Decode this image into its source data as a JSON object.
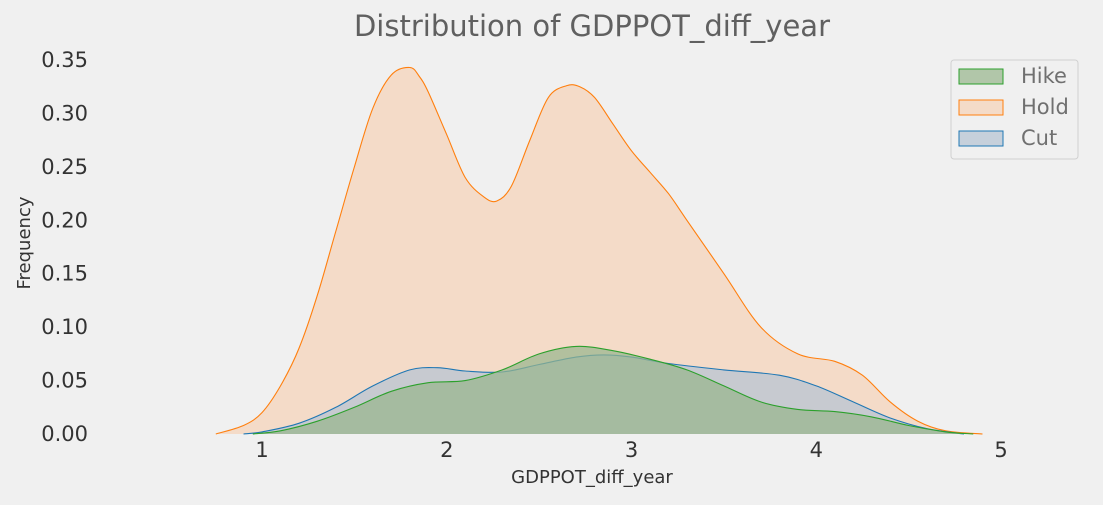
{
  "chart_data": {
    "type": "area",
    "title": "Distribution of GDPPOT_diff_year",
    "xlabel": "GDPPOT_diff_year",
    "ylabel": "Frequency",
    "xlim": [
      0.0,
      5.0
    ],
    "ylim": [
      0.0,
      0.35
    ],
    "xticks": [
      1,
      2,
      3,
      4,
      5
    ],
    "yticks": [
      0.0,
      0.05,
      0.1,
      0.15,
      0.2,
      0.25,
      0.3,
      0.35
    ],
    "ytick_labels": [
      "0.00",
      "0.05",
      "0.10",
      "0.15",
      "0.20",
      "0.25",
      "0.30",
      "0.35"
    ],
    "grid": false,
    "legend_position": "top-right",
    "series": [
      {
        "name": "Hold",
        "color": "#ff7f0e",
        "fill": "#f5d3b8",
        "x": [
          0.75,
          0.9,
          1.0,
          1.1,
          1.2,
          1.3,
          1.4,
          1.5,
          1.6,
          1.7,
          1.8,
          1.85,
          1.9,
          2.0,
          2.1,
          2.2,
          2.27,
          2.35,
          2.45,
          2.55,
          2.65,
          2.72,
          2.8,
          2.9,
          3.0,
          3.1,
          3.2,
          3.3,
          3.5,
          3.7,
          3.9,
          4.1,
          4.25,
          4.4,
          4.55,
          4.7,
          4.9
        ],
        "y": [
          0.0,
          0.008,
          0.02,
          0.045,
          0.08,
          0.13,
          0.19,
          0.25,
          0.305,
          0.336,
          0.343,
          0.335,
          0.32,
          0.28,
          0.24,
          0.222,
          0.218,
          0.232,
          0.275,
          0.315,
          0.326,
          0.325,
          0.315,
          0.29,
          0.265,
          0.245,
          0.225,
          0.2,
          0.15,
          0.1,
          0.075,
          0.068,
          0.055,
          0.03,
          0.012,
          0.003,
          0.0
        ]
      },
      {
        "name": "Cut",
        "color": "#1f77b4",
        "fill": "#b6c4d2",
        "x": [
          0.9,
          1.0,
          1.2,
          1.4,
          1.6,
          1.8,
          1.95,
          2.1,
          2.3,
          2.5,
          2.7,
          2.85,
          3.0,
          3.2,
          3.5,
          3.8,
          4.0,
          4.2,
          4.4,
          4.6,
          4.8
        ],
        "y": [
          0.0,
          0.002,
          0.01,
          0.025,
          0.045,
          0.06,
          0.062,
          0.059,
          0.058,
          0.065,
          0.072,
          0.074,
          0.072,
          0.066,
          0.06,
          0.055,
          0.045,
          0.03,
          0.015,
          0.005,
          0.0
        ]
      },
      {
        "name": "Hike",
        "color": "#2ca02c",
        "fill": "#99b58e",
        "x": [
          0.95,
          1.1,
          1.3,
          1.5,
          1.7,
          1.9,
          2.1,
          2.3,
          2.5,
          2.7,
          2.9,
          3.1,
          3.3,
          3.5,
          3.7,
          3.9,
          4.1,
          4.3,
          4.5,
          4.7,
          4.85
        ],
        "y": [
          0.0,
          0.003,
          0.012,
          0.025,
          0.04,
          0.048,
          0.05,
          0.06,
          0.075,
          0.082,
          0.078,
          0.07,
          0.06,
          0.045,
          0.03,
          0.023,
          0.021,
          0.016,
          0.008,
          0.002,
          0.0
        ]
      }
    ],
    "legend": [
      "Hike",
      "Hold",
      "Cut"
    ]
  }
}
